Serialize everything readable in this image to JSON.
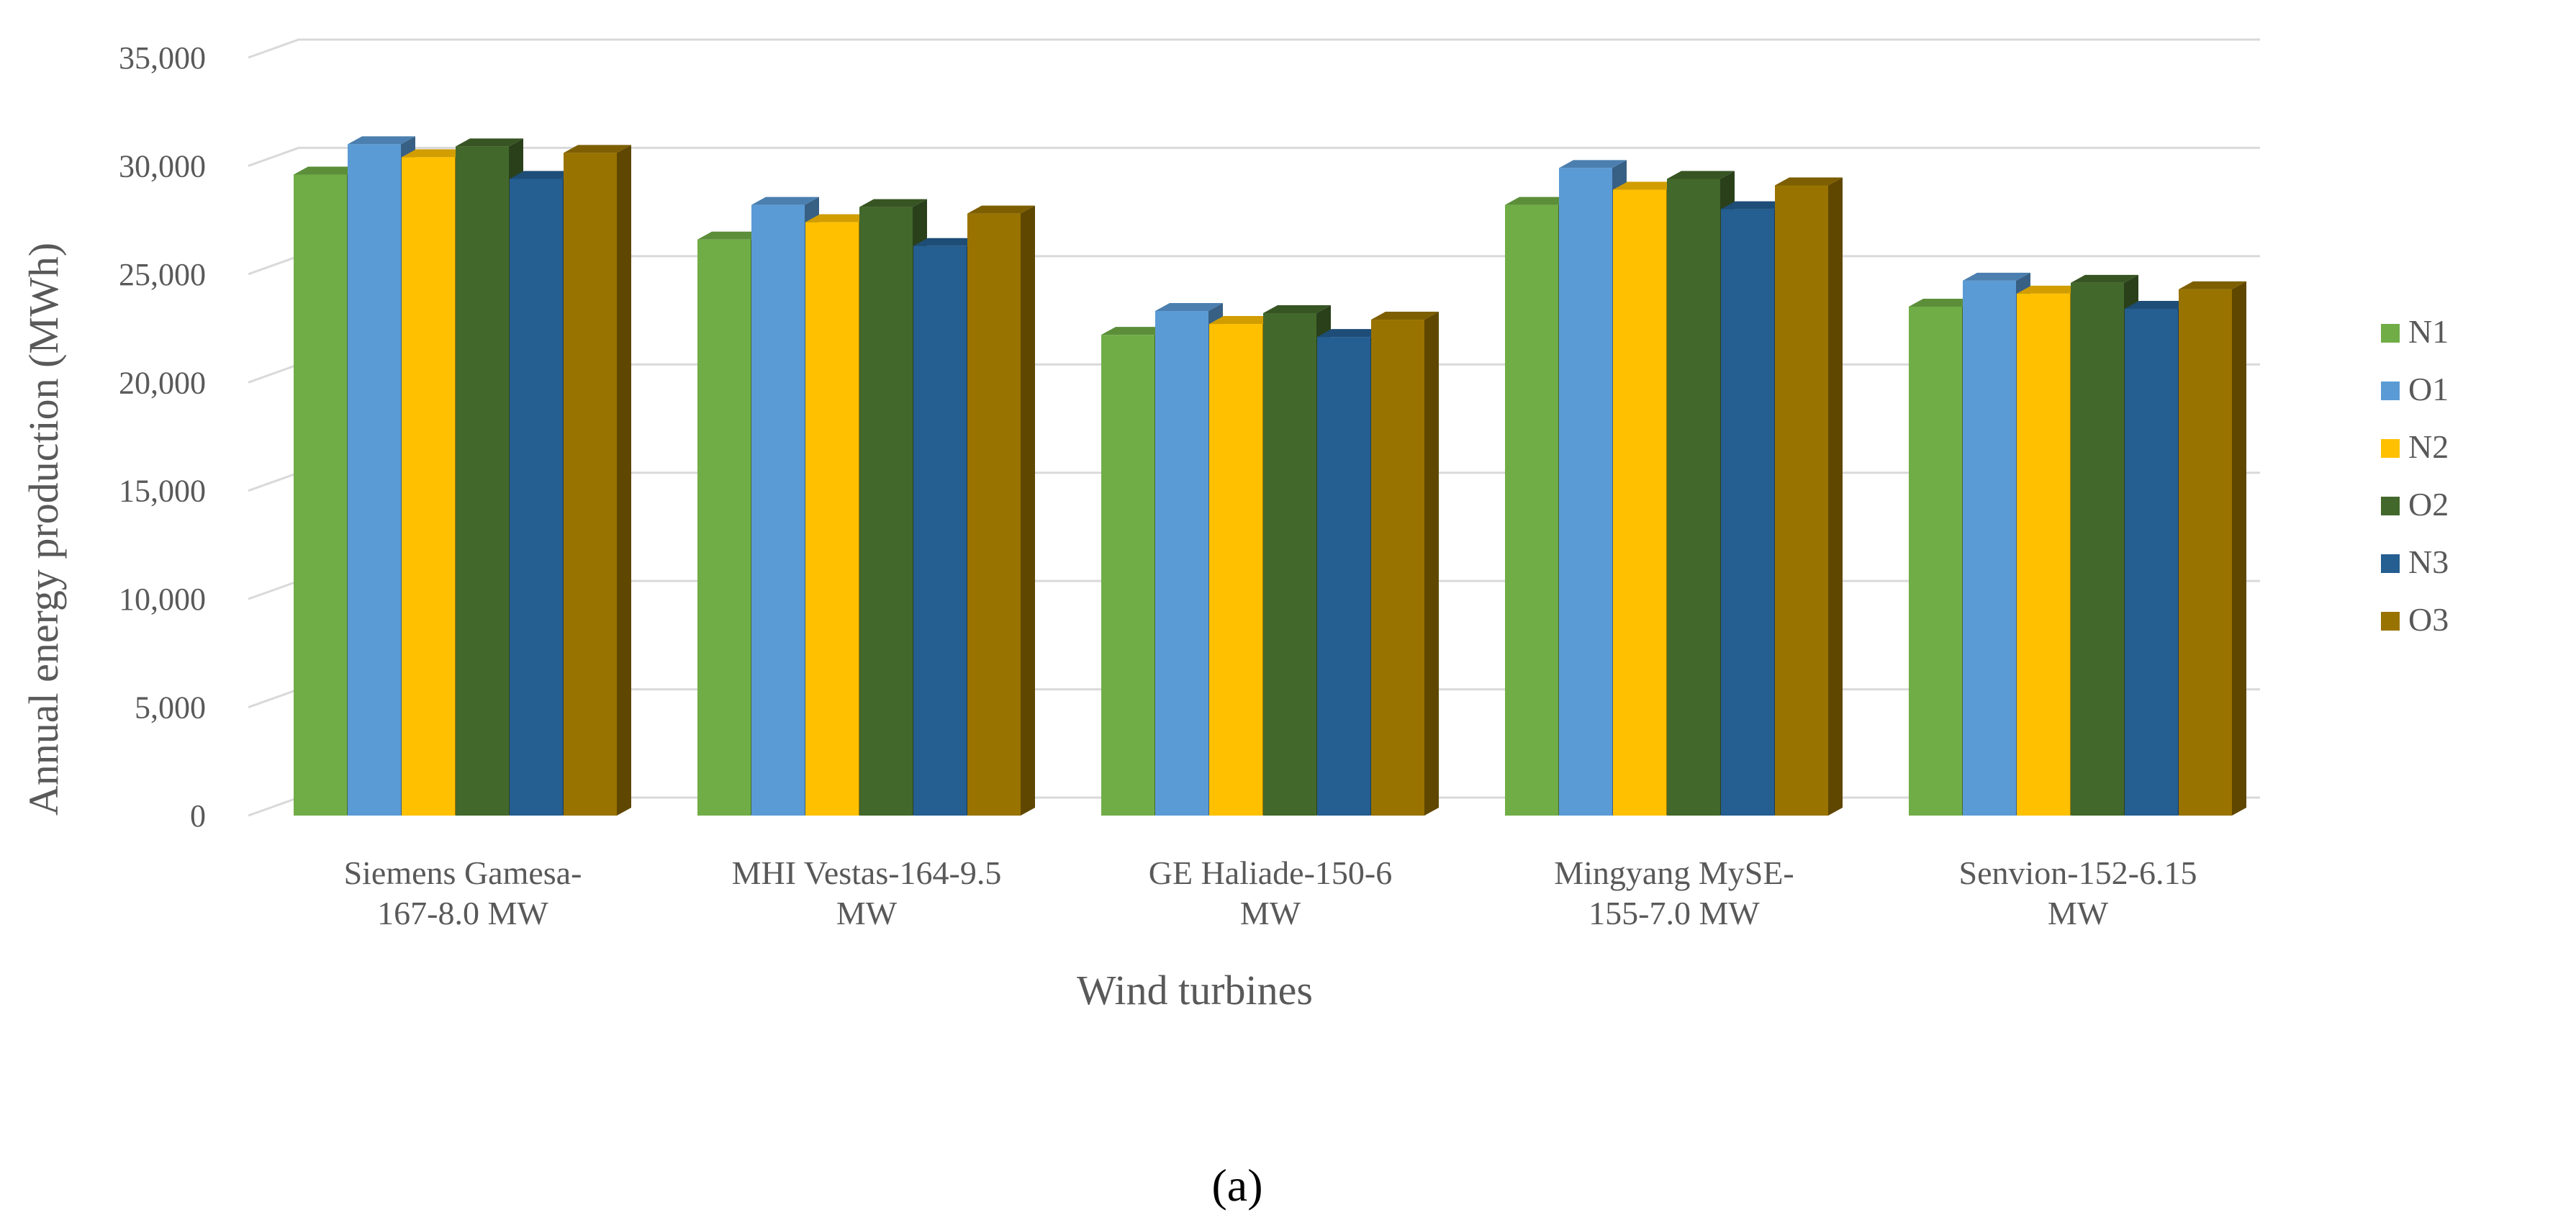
{
  "chart_data": {
    "type": "bar",
    "style": "3d-clustered-column",
    "title": "",
    "xlabel": "Wind turbines",
    "ylabel": "Annual energy production (MWh)",
    "ylim": [
      0,
      35000
    ],
    "yticks": [
      0,
      5000,
      10000,
      15000,
      20000,
      25000,
      30000,
      35000
    ],
    "ytick_labels": [
      "0",
      "5,000",
      "10,000",
      "15,000",
      "20,000",
      "25,000",
      "30,000",
      "35,000"
    ],
    "grid": true,
    "legend_position": "right",
    "categories": [
      [
        "Siemens Gamesa-",
        "167-8.0 MW"
      ],
      [
        "MHI Vestas-164-9.5",
        "MW"
      ],
      [
        "GE Haliade-150-6",
        "MW"
      ],
      [
        "Mingyang MySE-",
        "155-7.0 MW"
      ],
      [
        "Senvion-152-6.15",
        "MW"
      ]
    ],
    "series": [
      {
        "name": "N1",
        "color": "#70AD47",
        "values": [
          29600,
          26600,
          22200,
          28200,
          23500
        ]
      },
      {
        "name": "O1",
        "color": "#5B9BD5",
        "values": [
          31000,
          28200,
          23300,
          29900,
          24700
        ]
      },
      {
        "name": "N2",
        "color": "#FFC000",
        "values": [
          30400,
          27400,
          22700,
          28900,
          24100
        ]
      },
      {
        "name": "O2",
        "color": "#43682B",
        "values": [
          30900,
          28100,
          23200,
          29400,
          24600
        ]
      },
      {
        "name": "N3",
        "color": "#255E91",
        "values": [
          29400,
          26300,
          22100,
          28000,
          23400
        ]
      },
      {
        "name": "O3",
        "color": "#997300",
        "values": [
          30600,
          27800,
          22900,
          29100,
          24300
        ]
      }
    ]
  },
  "caption": "(a)"
}
